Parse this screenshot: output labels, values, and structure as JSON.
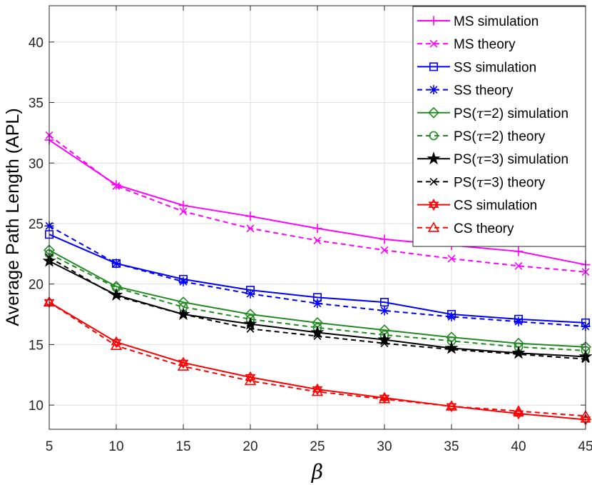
{
  "chart_data": {
    "type": "line",
    "title": "",
    "xlabel": "β",
    "ylabel": "Average Path Length (APL)",
    "x": [
      5,
      10,
      15,
      20,
      25,
      30,
      35,
      40,
      45
    ],
    "xlim": [
      5,
      45
    ],
    "ylim": [
      8,
      43
    ],
    "xticks": [
      "5",
      "10",
      "15",
      "20",
      "25",
      "30",
      "35",
      "40",
      "45"
    ],
    "yticks": [
      "10",
      "15",
      "20",
      "25",
      "30",
      "35",
      "40"
    ],
    "grid": true,
    "legend_position": "top-right",
    "series": [
      {
        "name": "MS simulation",
        "legend_prefix": "MS simulation",
        "legend_tau": "",
        "legend_suffix": "",
        "color": "#ff00ff",
        "dash": "solid",
        "marker": "plus",
        "values": [
          31.9,
          28.2,
          26.5,
          25.6,
          24.6,
          23.7,
          23.2,
          22.7,
          21.6
        ]
      },
      {
        "name": "MS theory",
        "legend_prefix": "MS theory",
        "legend_tau": "",
        "legend_suffix": "",
        "color": "#ff00ff",
        "dash": "dashed",
        "marker": "x",
        "values": [
          32.3,
          28.1,
          26.0,
          24.6,
          23.6,
          22.8,
          22.1,
          21.5,
          21.0
        ]
      },
      {
        "name": "SS simulation",
        "legend_prefix": "SS simulation",
        "legend_tau": "",
        "legend_suffix": "",
        "color": "#0000ff",
        "dash": "solid",
        "marker": "square",
        "values": [
          24.1,
          21.7,
          20.4,
          19.5,
          18.9,
          18.5,
          17.5,
          17.1,
          16.8
        ]
      },
      {
        "name": "SS theory",
        "legend_prefix": "SS theory",
        "legend_tau": "",
        "legend_suffix": "",
        "color": "#0000ff",
        "dash": "dashed",
        "marker": "asterisk",
        "values": [
          24.8,
          21.7,
          20.2,
          19.2,
          18.4,
          17.8,
          17.3,
          16.9,
          16.5
        ]
      },
      {
        "name": "PS(τ=2) simulation",
        "legend_prefix": "PS(",
        "legend_tau": "τ",
        "legend_suffix": "=2) simulation",
        "color": "#228b22",
        "dash": "solid",
        "marker": "diamond",
        "values": [
          22.8,
          19.8,
          18.5,
          17.5,
          16.8,
          16.2,
          15.6,
          15.1,
          14.8
        ]
      },
      {
        "name": "PS(τ=2) theory",
        "legend_prefix": "PS(",
        "legend_tau": "τ",
        "legend_suffix": "=2) theory",
        "color": "#228b22",
        "dash": "dashed",
        "marker": "circle",
        "values": [
          22.5,
          19.7,
          18.1,
          17.1,
          16.4,
          15.8,
          15.3,
          14.8,
          14.5
        ]
      },
      {
        "name": "PS(τ=3) simulation",
        "legend_prefix": "PS(",
        "legend_tau": "τ",
        "legend_suffix": "=3) simulation",
        "color": "#000000",
        "dash": "solid",
        "marker": "star",
        "values": [
          21.9,
          19.1,
          17.5,
          16.7,
          16.0,
          15.4,
          14.7,
          14.3,
          14.0
        ]
      },
      {
        "name": "PS(τ=3) theory",
        "legend_prefix": "PS(",
        "legend_tau": "τ",
        "legend_suffix": "=3) theory",
        "color": "#000000",
        "dash": "dashed",
        "marker": "x",
        "values": [
          22.2,
          19.0,
          17.5,
          16.3,
          15.7,
          15.1,
          14.6,
          14.2,
          13.8
        ]
      },
      {
        "name": "CS simulation",
        "legend_prefix": "CS simulation",
        "legend_tau": "",
        "legend_suffix": "",
        "color": "#ff0000",
        "dash": "solid",
        "marker": "hexagram",
        "values": [
          18.5,
          15.2,
          13.5,
          12.3,
          11.3,
          10.6,
          9.9,
          9.3,
          8.8
        ]
      },
      {
        "name": "CS theory",
        "legend_prefix": "CS theory",
        "legend_tau": "",
        "legend_suffix": "",
        "color": "#ff0000",
        "dash": "dashed",
        "marker": "triangle",
        "values": [
          18.5,
          14.9,
          13.2,
          12.0,
          11.1,
          10.5,
          9.9,
          9.5,
          9.1
        ]
      }
    ]
  }
}
